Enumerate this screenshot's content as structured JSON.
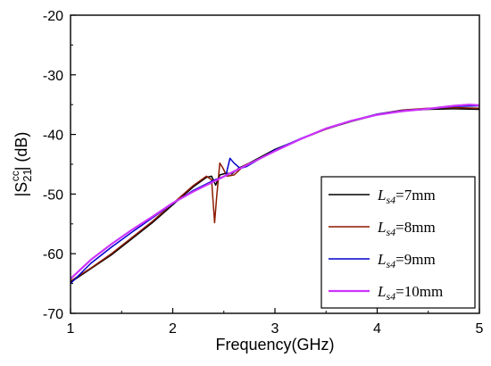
{
  "chart_data": {
    "type": "line",
    "xlabel": "Frequency(GHz)",
    "ylabel": "|S21cc| (dB)",
    "ylabel_parts": {
      "prefix": "|S",
      "sub": "21",
      "sup": "cc",
      "suffix": "| (dB)"
    },
    "xlim": [
      1,
      5
    ],
    "ylim": [
      -70,
      -20
    ],
    "xticks": [
      "1",
      "2",
      "3",
      "4",
      "5"
    ],
    "yticks": [
      "-70",
      "-60",
      "-50",
      "-40",
      "-30",
      "-20"
    ],
    "grid": false,
    "legend_position": "bottom-right",
    "series": [
      {
        "name": "Ls4=7mm",
        "label_var": "L",
        "label_sub": "s4",
        "label_val": "=7mm",
        "color": "#000000",
        "points": [
          [
            1.0,
            -64.8
          ],
          [
            1.2,
            -62.5
          ],
          [
            1.4,
            -60.2
          ],
          [
            1.6,
            -57.5
          ],
          [
            1.8,
            -54.8
          ],
          [
            2.0,
            -51.8
          ],
          [
            2.2,
            -48.8
          ],
          [
            2.33,
            -47.2
          ],
          [
            2.38,
            -47.0
          ],
          [
            2.42,
            -48.5
          ],
          [
            2.46,
            -46.8
          ],
          [
            2.52,
            -46.5
          ],
          [
            2.58,
            -46.6
          ],
          [
            2.65,
            -45.6
          ],
          [
            2.75,
            -44.8
          ],
          [
            3.0,
            -42.5
          ],
          [
            3.25,
            -40.8
          ],
          [
            3.5,
            -39.1
          ],
          [
            3.75,
            -37.8
          ],
          [
            4.0,
            -36.7
          ],
          [
            4.25,
            -36.0
          ],
          [
            4.5,
            -35.8
          ],
          [
            4.75,
            -35.7
          ],
          [
            5.0,
            -35.8
          ]
        ]
      },
      {
        "name": "Ls4=8mm",
        "label_var": "L",
        "label_sub": "s4",
        "label_val": "=8mm",
        "color": "#8b1a00",
        "points": [
          [
            1.0,
            -64.6
          ],
          [
            1.2,
            -62.4
          ],
          [
            1.4,
            -60.0
          ],
          [
            1.6,
            -57.3
          ],
          [
            1.8,
            -54.6
          ],
          [
            2.0,
            -51.6
          ],
          [
            2.2,
            -48.6
          ],
          [
            2.33,
            -47.0
          ],
          [
            2.38,
            -47.6
          ],
          [
            2.41,
            -54.8
          ],
          [
            2.43,
            -50.5
          ],
          [
            2.46,
            -44.8
          ],
          [
            2.49,
            -45.6
          ],
          [
            2.53,
            -47.0
          ],
          [
            2.6,
            -46.8
          ],
          [
            2.7,
            -45.2
          ],
          [
            2.8,
            -44.5
          ],
          [
            3.0,
            -42.6
          ],
          [
            3.25,
            -40.8
          ],
          [
            3.5,
            -39.1
          ],
          [
            3.75,
            -37.7
          ],
          [
            4.0,
            -36.6
          ],
          [
            4.25,
            -35.9
          ],
          [
            4.5,
            -35.6
          ],
          [
            4.75,
            -35.5
          ],
          [
            5.0,
            -35.6
          ]
        ]
      },
      {
        "name": "Ls4=9mm",
        "label_var": "L",
        "label_sub": "s4",
        "label_val": "=9mm",
        "color": "#0000cc",
        "points": [
          [
            1.0,
            -65.0
          ],
          [
            1.2,
            -61.6
          ],
          [
            1.4,
            -58.9
          ],
          [
            1.6,
            -56.4
          ],
          [
            1.8,
            -54.0
          ],
          [
            2.0,
            -51.6
          ],
          [
            2.2,
            -49.4
          ],
          [
            2.4,
            -47.7
          ],
          [
            2.52,
            -46.9
          ],
          [
            2.56,
            -44.0
          ],
          [
            2.6,
            -44.8
          ],
          [
            2.66,
            -45.7
          ],
          [
            2.72,
            -45.4
          ],
          [
            2.8,
            -44.6
          ],
          [
            3.0,
            -42.6
          ],
          [
            3.25,
            -40.7
          ],
          [
            3.5,
            -39.0
          ],
          [
            3.75,
            -37.7
          ],
          [
            4.0,
            -36.6
          ],
          [
            4.25,
            -36.0
          ],
          [
            4.5,
            -35.7
          ],
          [
            4.75,
            -35.3
          ],
          [
            5.0,
            -35.2
          ]
        ]
      },
      {
        "name": "Ls4=10mm",
        "label_var": "L",
        "label_sub": "s4",
        "label_val": "=10mm",
        "color": "#cc33ff",
        "points": [
          [
            1.0,
            -64.2
          ],
          [
            1.2,
            -61.0
          ],
          [
            1.4,
            -58.4
          ],
          [
            1.6,
            -56.0
          ],
          [
            1.8,
            -53.8
          ],
          [
            2.0,
            -51.5
          ],
          [
            2.2,
            -49.6
          ],
          [
            2.4,
            -47.9
          ],
          [
            2.6,
            -46.2
          ],
          [
            2.8,
            -44.5
          ],
          [
            3.0,
            -42.8
          ],
          [
            3.25,
            -40.8
          ],
          [
            3.5,
            -39.0
          ],
          [
            3.75,
            -37.7
          ],
          [
            4.0,
            -36.7
          ],
          [
            4.25,
            -36.1
          ],
          [
            4.5,
            -35.7
          ],
          [
            4.75,
            -35.2
          ],
          [
            4.9,
            -35.0
          ],
          [
            5.0,
            -35.1
          ]
        ]
      }
    ]
  }
}
